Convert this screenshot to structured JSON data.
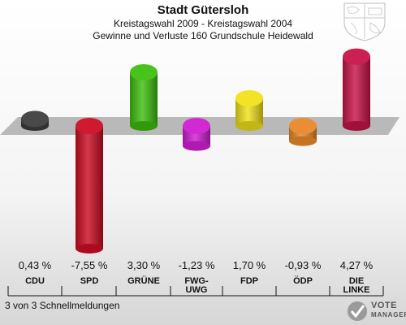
{
  "header": {
    "title": "Stadt Gütersloh",
    "subtitle": "Kreistagswahl 2009 - Kreistagswahl 2004",
    "subtitle2": "Gewinne und Verluste 160 Grundschule Heidewald"
  },
  "footer": {
    "note": "3 von 3 Schnellmeldungen",
    "logo_line1": "VOTE",
    "logo_line2": "MANAGER"
  },
  "colors": {
    "CDU": "#3f3f3f",
    "SPD": "#cc0d24",
    "GRÜNE": "#3fbf0f",
    "FWG-UWG": "#cf1fd0",
    "FDP": "#f2e21b",
    "ÖDP": "#e8882a",
    "DIE LINKE": "#c81448"
  },
  "chart_data": {
    "type": "bar",
    "title": "Stadt Gütersloh",
    "subtitle": "Kreistagswahl 2009 - Kreistagswahl 2004",
    "categories": [
      "CDU",
      "SPD",
      "GRÜNE",
      "FWG-\nUWG",
      "FDP",
      "ÖDP",
      "DIE\nLINKE"
    ],
    "values": [
      0.43,
      -7.55,
      3.3,
      -1.23,
      1.7,
      -0.93,
      4.27
    ],
    "value_labels": [
      "0,43 %",
      "-7,55 %",
      "3,30 %",
      "-1,23 %",
      "1,70 %",
      "-0,93 %",
      "4,27 %"
    ],
    "unit": "%",
    "xlabel": "",
    "ylabel": "",
    "grid": false,
    "legend": "none"
  }
}
